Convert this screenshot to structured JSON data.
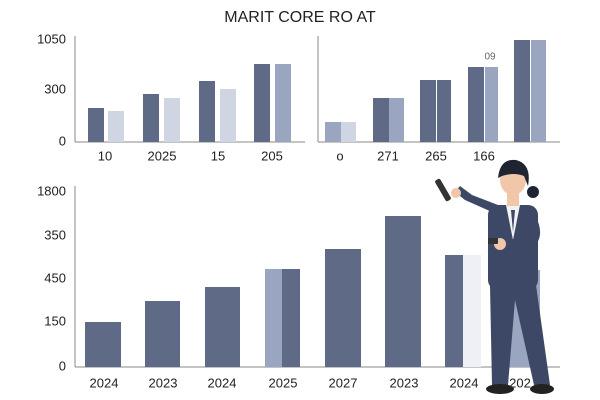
{
  "title": "MARIT CORE RO AT",
  "panels": [
    {
      "y_labels": [
        "1050",
        "300",
        "0"
      ],
      "x_labels": [
        "10",
        "2025",
        "15",
        "205"
      ]
    },
    {
      "x_labels": [
        "o",
        "271",
        "265",
        "166"
      ],
      "annotation": "09"
    },
    {
      "y_labels": [
        "1800",
        "350",
        "450",
        "150",
        "0"
      ],
      "x_labels": [
        "2024",
        "2023",
        "2024",
        "2025",
        "2027",
        "2023",
        "2024",
        "202"
      ]
    }
  ]
}
